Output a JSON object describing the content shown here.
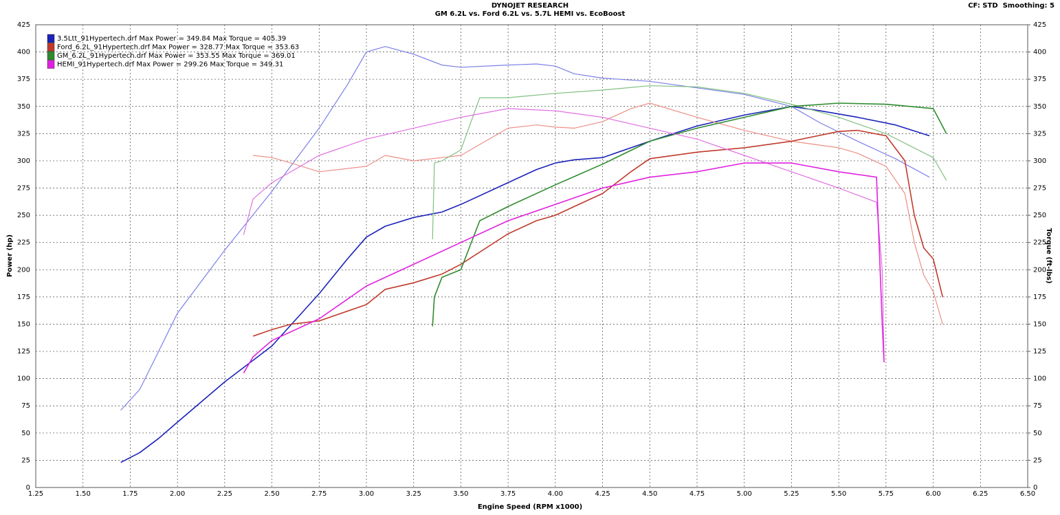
{
  "chart_data": {
    "type": "line",
    "title": "DYNOJET RESEARCH",
    "subtitle": "GM 6.2L vs. Ford 6.2L vs. 5.7L HEMI vs. EcoBoost",
    "settings_text": "CF: STD  Smoothing: 5",
    "x_label": "Engine Speed (RPM x1000)",
    "y_label": "Power (hp)",
    "y2_label": "Torque (ft-lbs)",
    "xlim": [
      1.25,
      6.5
    ],
    "xticks": [
      1.25,
      {
        "value": 1.5,
        "label": "1.50"
      },
      1.75,
      {
        "value": 2,
        "label": "2.00"
      },
      2.25,
      {
        "value": 2.5,
        "label": "2.50"
      },
      2.75,
      {
        "value": 3,
        "label": "3.00"
      },
      3.25,
      {
        "value": 3.5,
        "label": "3.50"
      },
      3.75,
      {
        "value": 4,
        "label": "4.00"
      },
      4.25,
      {
        "value": 4.5,
        "label": "4.50"
      },
      4.75,
      {
        "value": 5,
        "label": "5.00"
      },
      5.25,
      {
        "value": 5.5,
        "label": "5.50"
      },
      5.75,
      {
        "value": 6,
        "label": "6.00"
      },
      6.25,
      {
        "value": 6.5,
        "label": "6.50"
      }
    ],
    "ylim": [
      0,
      425
    ],
    "yticks": [
      0,
      25,
      50,
      75,
      100,
      125,
      150,
      175,
      200,
      225,
      250,
      275,
      300,
      325,
      350,
      375,
      400,
      425
    ],
    "y2lim": [
      0,
      425
    ],
    "y2ticks": [
      0,
      25,
      50,
      75,
      100,
      125,
      150,
      175,
      200,
      225,
      250,
      275,
      300,
      325,
      350,
      375,
      400,
      425
    ],
    "grid": true,
    "series": [
      {
        "name": "3.5Ltt_91Hypertech.drf Max Power = 349.84 Max Torque = 405.39",
        "color": "#1a22b8",
        "torque_color": "#7b7fe6",
        "x": [
          1.7,
          1.8,
          1.9,
          2.0,
          2.25,
          2.5,
          2.75,
          2.9,
          3.0,
          3.1,
          3.25,
          3.4,
          3.5,
          3.75,
          3.9,
          4.0,
          4.1,
          4.25,
          4.5,
          4.75,
          5.0,
          5.25,
          5.4,
          5.6,
          5.8,
          5.98
        ],
        "power": [
          23,
          32,
          45,
          60,
          97,
          130,
          178,
          210,
          230,
          240,
          248,
          253,
          260,
          280,
          292,
          298,
          301,
          303,
          318,
          332,
          342,
          350,
          346,
          340,
          333,
          323
        ],
        "torque": [
          71,
          90,
          125,
          160,
          218,
          272,
          330,
          370,
          400,
          405,
          398,
          388,
          386,
          388,
          389,
          387,
          380,
          376,
          373,
          367,
          361,
          350,
          335,
          318,
          302,
          285
        ]
      },
      {
        "name": "Ford_6.2L_91Hypertech.drf Max Power = 328.77 Max Torque = 353.63",
        "color": "#c0392b",
        "torque_color": "#ec8f86",
        "x": [
          2.4,
          2.5,
          2.6,
          2.75,
          3.0,
          3.1,
          3.25,
          3.4,
          3.5,
          3.75,
          3.9,
          4.0,
          4.1,
          4.25,
          4.4,
          4.5,
          4.75,
          5.0,
          5.25,
          5.5,
          5.6,
          5.75,
          5.85,
          5.9,
          5.95,
          6.0,
          6.05
        ],
        "power": [
          139,
          145,
          150,
          153,
          168,
          182,
          188,
          196,
          205,
          233,
          245,
          250,
          258,
          270,
          290,
          302,
          308,
          312,
          318,
          327,
          328,
          323,
          300,
          250,
          220,
          210,
          175
        ],
        "torque": [
          305,
          303,
          298,
          290,
          295,
          305,
          300,
          303,
          305,
          330,
          333,
          331,
          330,
          336,
          348,
          353,
          340,
          328,
          318,
          312,
          307,
          295,
          270,
          225,
          195,
          180,
          150
        ]
      },
      {
        "name": "GM_6.2L_91Hypertech.drf Max Power = 353.55 Max Torque = 369.01",
        "color": "#2e8b2e",
        "torque_color": "#7fbf7f",
        "x": [
          3.35,
          3.36,
          3.4,
          3.5,
          3.6,
          3.75,
          4.0,
          4.25,
          4.5,
          4.75,
          5.0,
          5.25,
          5.5,
          5.75,
          6.0,
          6.07
        ],
        "power": [
          148,
          175,
          193,
          200,
          245,
          258,
          278,
          297,
          318,
          330,
          340,
          350,
          353,
          352,
          348,
          325
        ],
        "torque": [
          228,
          298,
          300,
          310,
          358,
          358,
          362,
          365,
          369,
          368,
          362,
          352,
          340,
          325,
          303,
          282
        ]
      },
      {
        "name": "HEMI_91Hypertech.drf Max Power = 299.26 Max Torque = 349.31",
        "color": "#e020e0",
        "torque_color": "#e070e0",
        "x": [
          2.35,
          2.4,
          2.5,
          2.75,
          3.0,
          3.25,
          3.5,
          3.75,
          4.0,
          4.25,
          4.5,
          4.75,
          5.0,
          5.25,
          5.5,
          5.7,
          5.73,
          5.74
        ],
        "power": [
          105,
          120,
          135,
          155,
          185,
          205,
          225,
          245,
          260,
          275,
          285,
          290,
          298,
          298,
          290,
          285,
          150,
          115
        ],
        "torque": [
          232,
          265,
          280,
          305,
          320,
          330,
          340,
          348,
          346,
          340,
          330,
          320,
          305,
          290,
          275,
          262,
          200,
          120
        ]
      }
    ]
  }
}
